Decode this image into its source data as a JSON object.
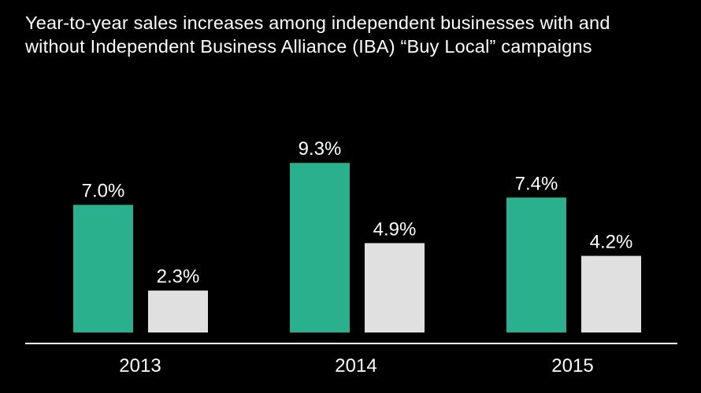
{
  "chart_data": {
    "type": "bar",
    "title_lines": [
      "Year-to-year sales increases among independent businesses with and",
      "without Independent Business Alliance (IBA) “Buy Local” campaigns"
    ],
    "categories": [
      "2013",
      "2014",
      "2015"
    ],
    "series": [
      {
        "values": [
          7.0,
          9.3,
          7.4
        ],
        "labels": [
          "7.0%",
          "9.3%",
          "7.4%"
        ],
        "color": "#2BB08E"
      },
      {
        "values": [
          2.3,
          4.9,
          4.2
        ],
        "labels": [
          "2.3%",
          "4.9%",
          "4.2%"
        ],
        "color": "#E0E0E0"
      }
    ],
    "ylim": [
      0,
      10
    ],
    "grid": false,
    "axis_color": "#FFFFFF"
  }
}
